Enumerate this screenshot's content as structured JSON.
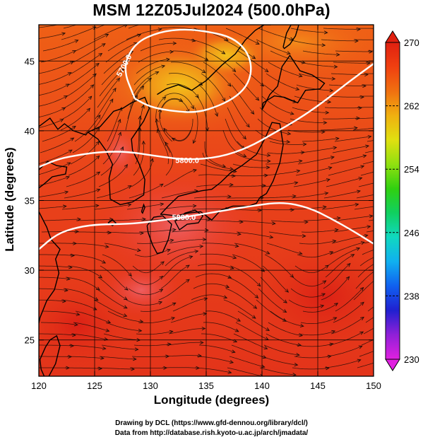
{
  "title": "MSM 12Z05Jul2024 (500.0hPa)",
  "xlabel": "Longitude (degrees)",
  "ylabel": "Latitude  (degrees)",
  "footer_line1": "Drawing by DCL (https://www.gfd-dennou.org/library/dcl/)",
  "footer_line2": "Data from http://database.rish.kyoto-u.ac.jp/arch/jmadata/",
  "x_ticks": [
    "120",
    "125",
    "130",
    "135",
    "140",
    "145",
    "150"
  ],
  "y_ticks": [
    "25",
    "30",
    "35",
    "40",
    "45"
  ],
  "x_range": [
    120,
    150
  ],
  "y_range": [
    22.4,
    47.6
  ],
  "colorbar": {
    "ticks": [
      "270",
      "262",
      "254",
      "246",
      "238",
      "230"
    ],
    "range": [
      230,
      270
    ],
    "colors": [
      "#e020e0",
      "#9020d8",
      "#2020d0",
      "#1060f0",
      "#10b0f0",
      "#10d8c0",
      "#10d060",
      "#30d010",
      "#90e010",
      "#e0e010",
      "#f0b010",
      "#f07010",
      "#f04010",
      "#e02010"
    ]
  },
  "contours": [
    {
      "label": "5700.0",
      "lon": [
        128.6,
        127.5,
        128.6,
        130.8,
        133.1,
        135.3,
        137.3,
        138.6,
        139.1,
        138.8,
        137.8,
        136.2,
        134.2,
        132.0,
        130.0,
        128.6
      ],
      "lat": [
        42.3,
        44.5,
        46.3,
        47.1,
        47.3,
        47.1,
        46.7,
        45.8,
        44.6,
        43.4,
        42.5,
        41.8,
        41.3,
        41.4,
        41.7,
        42.3
      ]
    },
    {
      "label": "5800.0",
      "lon": [
        120.0,
        121.8,
        123.8,
        125.8,
        128.0,
        130.4,
        133.3,
        136.2,
        138.8,
        141.0,
        143.2,
        145.4,
        147.6,
        150.0
      ],
      "lat": [
        37.4,
        38.0,
        38.3,
        38.5,
        38.5,
        38.2,
        37.9,
        38.1,
        38.8,
        39.8,
        40.8,
        42.0,
        43.4,
        44.8
      ]
    },
    {
      "label": "5900.0",
      "lon": [
        120.0,
        121.6,
        123.5,
        125.5,
        127.8,
        130.3,
        133.0,
        136.0,
        139.0,
        141.8,
        144.2,
        146.2,
        148.2,
        150.0
      ],
      "lat": [
        31.5,
        32.6,
        33.1,
        33.3,
        33.3,
        33.5,
        33.8,
        34.2,
        34.6,
        34.9,
        34.5,
        33.7,
        32.8,
        31.9
      ]
    }
  ],
  "coastlines": [
    {
      "name": "japan-honshu",
      "lon": [
        130.9,
        131.6,
        132.5,
        133.5,
        134.6,
        135.5,
        136.3,
        137.2,
        138.2,
        139.5,
        140.3,
        140.9,
        141.6,
        141.9,
        141.6,
        141.0,
        140.4,
        139.8,
        139.5,
        138.8,
        137.4,
        136.3,
        135.5,
        134.5,
        133.4,
        132.3,
        131.2,
        130.9
      ],
      "lat": [
        34.0,
        34.6,
        35.3,
        35.5,
        35.7,
        35.8,
        36.3,
        37.0,
        37.5,
        38.3,
        39.5,
        40.6,
        40.5,
        39.0,
        37.7,
        36.4,
        35.5,
        35.2,
        34.8,
        34.6,
        34.6,
        34.3,
        33.6,
        34.2,
        34.1,
        33.9,
        34.0,
        34.0
      ]
    },
    {
      "name": "japan-kyushu",
      "lon": [
        129.7,
        130.3,
        131.1,
        131.9,
        131.6,
        131.1,
        130.6,
        130.2,
        129.8,
        129.7
      ],
      "lat": [
        33.2,
        33.8,
        33.9,
        33.3,
        32.2,
        31.3,
        31.2,
        31.8,
        32.7,
        33.2
      ]
    },
    {
      "name": "japan-shikoku",
      "lon": [
        132.2,
        133.1,
        134.0,
        134.7,
        134.3,
        133.3,
        132.6,
        132.2
      ],
      "lat": [
        33.5,
        34.1,
        34.3,
        33.9,
        33.4,
        33.3,
        32.9,
        33.5
      ]
    },
    {
      "name": "japan-hokkaido",
      "lon": [
        140.0,
        140.7,
        141.4,
        141.8,
        142.5,
        143.4,
        144.5,
        145.6,
        145.2,
        143.9,
        143.2,
        142.0,
        141.1,
        140.1,
        140.0
      ],
      "lat": [
        41.5,
        42.6,
        43.2,
        44.6,
        45.4,
        44.3,
        44.0,
        43.4,
        43.0,
        42.9,
        42.0,
        42.4,
        42.5,
        42.0,
        41.5
      ]
    },
    {
      "name": "sakhalin",
      "lon": [
        141.9,
        142.2,
        142.6,
        143.3,
        143.0,
        142.5,
        142.0,
        141.9
      ],
      "lat": [
        46.0,
        47.0,
        47.6,
        47.6,
        46.8,
        46.2,
        45.9,
        46.0
      ]
    },
    {
      "name": "korea",
      "lon": [
        124.4,
        125.3,
        126.0,
        126.6,
        126.3,
        126.4,
        127.3,
        128.4,
        129.4,
        129.5,
        129.0,
        128.4,
        128.3,
        129.4,
        129.9,
        129.5,
        128.3,
        127.5,
        126.7,
        125.5,
        124.4
      ],
      "lat": [
        39.9,
        39.4,
        38.6,
        37.6,
        36.6,
        35.1,
        34.7,
        34.9,
        35.4,
        36.5,
        37.6,
        38.6,
        39.4,
        40.7,
        41.6,
        42.4,
        42.0,
        41.6,
        41.4,
        40.3,
        39.9
      ]
    },
    {
      "name": "asia-coast",
      "lon": [
        130.6,
        131.4,
        132.5,
        133.7,
        135.0,
        136.4,
        137.6,
        138.5,
        139.4,
        140.2,
        140.8
      ],
      "lat": [
        42.6,
        43.0,
        43.3,
        42.9,
        43.6,
        44.7,
        45.5,
        46.5,
        47.2,
        47.6,
        47.6
      ]
    },
    {
      "name": "liaodong",
      "lon": [
        120.0,
        121.0,
        121.7,
        122.3,
        123.1,
        124.2,
        124.4
      ],
      "lat": [
        40.3,
        40.9,
        40.1,
        40.5,
        40.0,
        39.7,
        39.9
      ]
    },
    {
      "name": "shandong",
      "lon": [
        120.0,
        120.8,
        121.6,
        122.5,
        122.4,
        121.2,
        120.5,
        120.0
      ],
      "lat": [
        37.2,
        37.8,
        37.5,
        37.4,
        36.9,
        36.7,
        36.2,
        35.9
      ]
    },
    {
      "name": "china-east",
      "lon": [
        120.0,
        120.7,
        121.1,
        121.9,
        121.5,
        121.8,
        121.4,
        120.7,
        120.1,
        120.0
      ],
      "lat": [
        34.2,
        33.1,
        32.2,
        31.5,
        30.8,
        29.8,
        28.6,
        27.8,
        26.6,
        26.2
      ]
    },
    {
      "name": "taiwan",
      "lon": [
        121.0,
        121.6,
        121.9,
        121.5,
        120.9,
        120.7,
        120.2,
        120.1,
        120.6,
        121.0
      ],
      "lat": [
        25.0,
        25.3,
        24.6,
        23.3,
        22.4,
        22.0,
        22.9,
        23.6,
        24.5,
        25.0
      ]
    },
    {
      "name": "jeju",
      "lon": [
        126.2,
        126.6,
        126.9,
        126.6,
        126.2
      ],
      "lat": [
        33.4,
        33.6,
        33.4,
        33.2,
        33.4
      ]
    },
    {
      "name": "tsushima",
      "lon": [
        129.2,
        129.4,
        129.5,
        129.3,
        129.2
      ],
      "lat": [
        34.2,
        34.7,
        34.5,
        34.1,
        34.2
      ]
    }
  ]
}
